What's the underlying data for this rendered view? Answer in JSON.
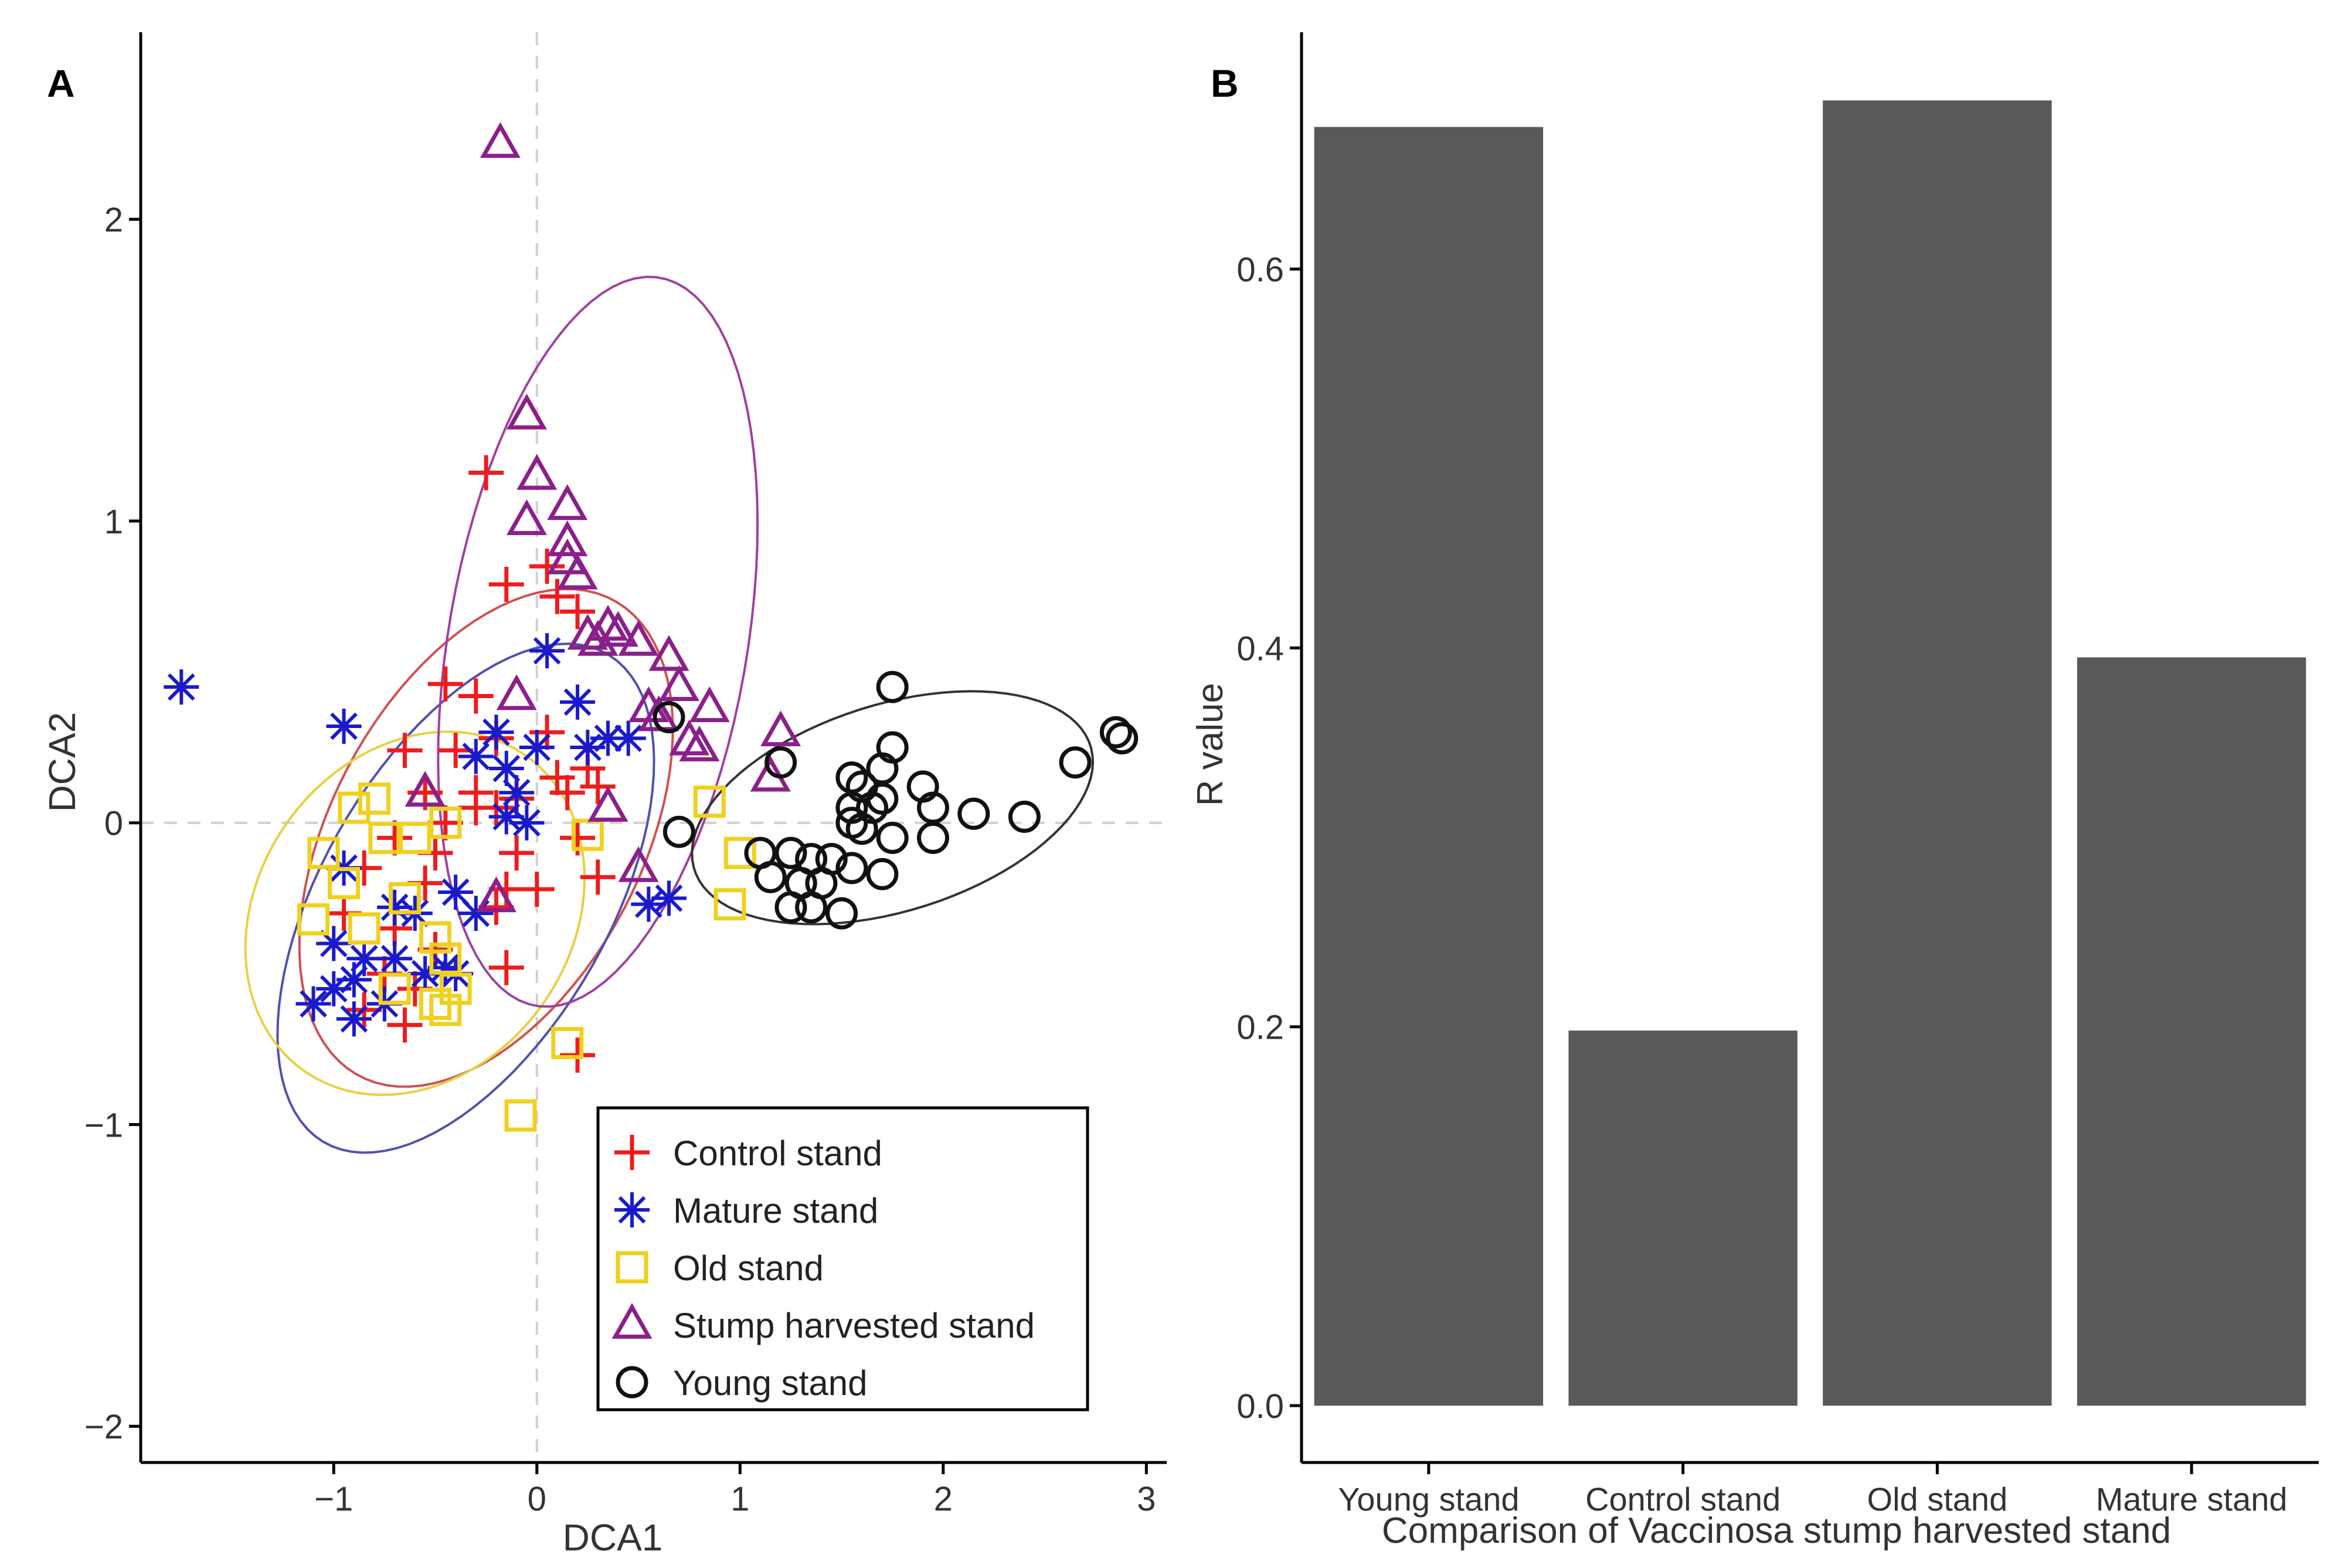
{
  "chart_data": [
    {
      "panel_label": "A",
      "type": "scatter",
      "title": "",
      "xlabel": "DCA1",
      "ylabel": "DCA2",
      "xlim": [
        -1.95,
        3.1
      ],
      "ylim": [
        -2.12,
        2.62
      ],
      "xticks": [
        -1,
        0,
        1,
        2,
        3
      ],
      "yticks": [
        -2,
        -1,
        0,
        1,
        2
      ],
      "xtick_labels": [
        "−1",
        "0",
        "1",
        "2",
        "3"
      ],
      "ytick_labels": [
        "−2",
        "−1",
        "0",
        "1",
        "2"
      ],
      "reference_lines": {
        "x": 0,
        "y": 0
      },
      "legend_position": "bottom-right",
      "series": [
        {
          "name": "Control stand",
          "color": "#ee1c1c",
          "marker": "plus",
          "points": [
            [
              -0.25,
              1.16
            ],
            [
              -0.15,
              0.79
            ],
            [
              0.05,
              0.85
            ],
            [
              0.1,
              0.75
            ],
            [
              0.2,
              0.7
            ],
            [
              -0.45,
              0.46
            ],
            [
              -0.3,
              0.42
            ],
            [
              -0.65,
              0.24
            ],
            [
              -0.4,
              0.24
            ],
            [
              -0.2,
              0.28
            ],
            [
              0.1,
              0.15
            ],
            [
              0.25,
              0.18
            ],
            [
              -0.55,
              0.1
            ],
            [
              -0.3,
              0.1
            ],
            [
              -0.1,
              0.08
            ],
            [
              0.15,
              0.1
            ],
            [
              -0.7,
              -0.05
            ],
            [
              -0.45,
              0.0
            ],
            [
              -0.2,
              0.05
            ],
            [
              -0.1,
              -0.1
            ],
            [
              0.2,
              -0.05
            ],
            [
              -0.85,
              -0.15
            ],
            [
              -0.55,
              -0.2
            ],
            [
              0.3,
              -0.18
            ],
            [
              -0.15,
              -0.22
            ],
            [
              0.0,
              -0.22
            ],
            [
              -0.95,
              -0.3
            ],
            [
              -0.7,
              -0.35
            ],
            [
              -0.5,
              -0.42
            ],
            [
              -0.2,
              -0.28
            ],
            [
              -0.75,
              -0.5
            ],
            [
              -0.6,
              -0.55
            ],
            [
              -0.85,
              -0.62
            ],
            [
              -0.65,
              -0.67
            ],
            [
              -0.15,
              -0.48
            ],
            [
              0.2,
              -0.77
            ],
            [
              0.3,
              0.12
            ],
            [
              0.05,
              0.3
            ],
            [
              -0.3,
              0.05
            ],
            [
              -0.5,
              -0.1
            ]
          ]
        },
        {
          "name": "Mature stand",
          "color": "#1a1acc",
          "marker": "asterisk",
          "points": [
            [
              -1.75,
              0.45
            ],
            [
              -0.95,
              0.32
            ],
            [
              0.05,
              0.57
            ],
            [
              0.2,
              0.4
            ],
            [
              -0.3,
              0.22
            ],
            [
              -0.2,
              0.3
            ],
            [
              -0.15,
              0.18
            ],
            [
              -0.1,
              0.1
            ],
            [
              0.0,
              0.25
            ],
            [
              0.25,
              0.25
            ],
            [
              0.35,
              0.28
            ],
            [
              0.45,
              0.28
            ],
            [
              -0.15,
              0.02
            ],
            [
              -0.05,
              0.0
            ],
            [
              -0.95,
              -0.15
            ],
            [
              -0.4,
              -0.23
            ],
            [
              -0.3,
              -0.3
            ],
            [
              0.55,
              -0.27
            ],
            [
              0.65,
              -0.25
            ],
            [
              -0.7,
              -0.28
            ],
            [
              -0.6,
              -0.3
            ],
            [
              -1.0,
              -0.4
            ],
            [
              -0.85,
              -0.45
            ],
            [
              -0.7,
              -0.45
            ],
            [
              -0.55,
              -0.5
            ],
            [
              -0.45,
              -0.48
            ],
            [
              -0.4,
              -0.5
            ],
            [
              -1.1,
              -0.6
            ],
            [
              -1.0,
              -0.55
            ],
            [
              -0.9,
              -0.52
            ],
            [
              -0.75,
              -0.6
            ],
            [
              -0.9,
              -0.65
            ]
          ]
        },
        {
          "name": "Old stand",
          "color": "#f0d020",
          "marker": "square",
          "points": [
            [
              -0.9,
              0.05
            ],
            [
              -0.8,
              0.08
            ],
            [
              -1.05,
              -0.1
            ],
            [
              -0.95,
              -0.2
            ],
            [
              -0.75,
              -0.05
            ],
            [
              -0.6,
              -0.05
            ],
            [
              -0.45,
              0.0
            ],
            [
              -1.1,
              -0.32
            ],
            [
              -0.85,
              -0.35
            ],
            [
              -0.65,
              -0.25
            ],
            [
              -0.5,
              -0.38
            ],
            [
              -0.45,
              -0.45
            ],
            [
              -0.7,
              -0.55
            ],
            [
              -0.5,
              -0.6
            ],
            [
              -0.4,
              -0.55
            ],
            [
              -0.45,
              -0.62
            ],
            [
              0.15,
              -0.73
            ],
            [
              -0.08,
              -0.97
            ],
            [
              0.85,
              0.07
            ],
            [
              1.0,
              -0.1
            ],
            [
              0.95,
              -0.27
            ],
            [
              0.25,
              -0.04
            ]
          ]
        },
        {
          "name": "Stump harvested stand",
          "color": "#8b1f8b",
          "marker": "triangle",
          "points": [
            [
              -0.18,
              2.25
            ],
            [
              -0.05,
              1.35
            ],
            [
              0.0,
              1.15
            ],
            [
              0.15,
              1.05
            ],
            [
              -0.05,
              1.0
            ],
            [
              0.15,
              0.93
            ],
            [
              0.15,
              0.87
            ],
            [
              0.2,
              0.82
            ],
            [
              0.25,
              0.62
            ],
            [
              0.3,
              0.6
            ],
            [
              0.35,
              0.65
            ],
            [
              0.4,
              0.63
            ],
            [
              0.5,
              0.6
            ],
            [
              0.65,
              0.55
            ],
            [
              0.7,
              0.45
            ],
            [
              0.85,
              0.38
            ],
            [
              0.55,
              0.38
            ],
            [
              0.6,
              0.35
            ],
            [
              0.8,
              0.25
            ],
            [
              0.75,
              0.27
            ],
            [
              1.2,
              0.3
            ],
            [
              1.15,
              0.15
            ],
            [
              -0.1,
              0.42
            ],
            [
              -0.55,
              0.1
            ],
            [
              0.35,
              0.05
            ],
            [
              0.5,
              -0.15
            ],
            [
              -0.2,
              -0.25
            ]
          ]
        },
        {
          "name": "Young stand",
          "color": "#111111",
          "marker": "circle",
          "points": [
            [
              0.65,
              0.35
            ],
            [
              1.75,
              0.45
            ],
            [
              1.75,
              0.25
            ],
            [
              1.55,
              0.15
            ],
            [
              1.6,
              0.12
            ],
            [
              1.7,
              0.18
            ],
            [
              1.9,
              0.12
            ],
            [
              1.95,
              0.05
            ],
            [
              2.15,
              0.03
            ],
            [
              2.4,
              0.02
            ],
            [
              2.65,
              0.2
            ],
            [
              2.85,
              0.3
            ],
            [
              2.88,
              0.28
            ],
            [
              1.2,
              0.2
            ],
            [
              1.55,
              0.05
            ],
            [
              1.65,
              0.05
            ],
            [
              1.7,
              0.08
            ],
            [
              1.55,
              0.0
            ],
            [
              1.6,
              -0.02
            ],
            [
              1.75,
              -0.05
            ],
            [
              1.95,
              -0.05
            ],
            [
              0.7,
              -0.03
            ],
            [
              1.1,
              -0.1
            ],
            [
              1.25,
              -0.1
            ],
            [
              1.35,
              -0.12
            ],
            [
              1.45,
              -0.12
            ],
            [
              1.55,
              -0.15
            ],
            [
              1.7,
              -0.17
            ],
            [
              1.15,
              -0.18
            ],
            [
              1.3,
              -0.2
            ],
            [
              1.4,
              -0.2
            ],
            [
              1.25,
              -0.28
            ],
            [
              1.35,
              -0.28
            ],
            [
              1.5,
              -0.3
            ]
          ]
        }
      ],
      "ellipses": [
        {
          "series": "Control stand",
          "color": "#d05050",
          "center": [
            -0.25,
            -0.05
          ],
          "rx": 1.05,
          "ry": 0.65,
          "angle": 38
        },
        {
          "series": "Mature stand",
          "color": "#5050b0",
          "center": [
            -0.35,
            -0.25
          ],
          "rx": 1.1,
          "ry": 0.6,
          "angle": 40
        },
        {
          "series": "Old stand",
          "color": "#e8d040",
          "center": [
            -0.6,
            -0.3
          ],
          "rx": 0.85,
          "ry": 0.58,
          "angle": 15
        },
        {
          "series": "Stump harvested stand",
          "color": "#a040a0",
          "center": [
            0.3,
            0.6
          ],
          "rx": 1.25,
          "ry": 0.72,
          "angle": 72
        },
        {
          "series": "Young stand",
          "color": "#333333",
          "center": [
            1.75,
            0.05
          ],
          "rx": 1.0,
          "ry": 0.35,
          "angle": 10
        }
      ]
    },
    {
      "panel_label": "B",
      "type": "bar",
      "title": "",
      "xlabel": "Comparison of Vaccinosa stump harvested stand",
      "ylabel": "R  value",
      "categories": [
        "Young stand",
        "Control stand",
        "Old stand",
        "Mature stand"
      ],
      "values": [
        0.675,
        0.198,
        0.689,
        0.395
      ],
      "color": "#595959",
      "ylim": [
        -0.03,
        0.725
      ],
      "yticks": [
        0.0,
        0.2,
        0.4,
        0.6
      ],
      "ytick_labels": [
        "0.0",
        "0.2",
        "0.4",
        "0.6"
      ]
    }
  ]
}
